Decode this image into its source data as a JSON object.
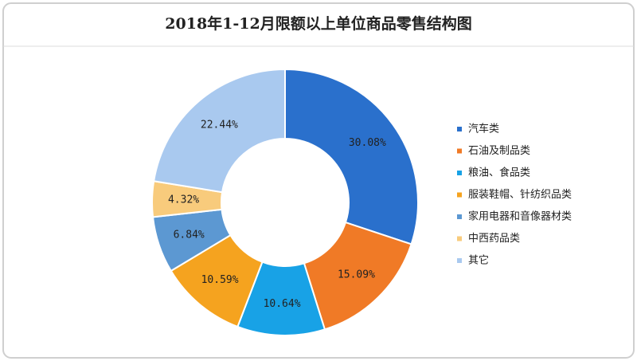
{
  "chart_data": {
    "type": "donut",
    "title": "2018年1-12月限额以上单位商品零售结构图",
    "categories": [
      "汽车类",
      "石油及制品类",
      "粮油、食品类",
      "服装鞋帽、针纺织品类",
      "家用电器和音像器材类",
      "中西药品类",
      "其它"
    ],
    "values": [
      30.08,
      15.09,
      10.64,
      10.59,
      6.84,
      4.32,
      22.44
    ],
    "value_labels": [
      "30.08%",
      "15.09%",
      "10.64%",
      "10.59%",
      "6.84%",
      "4.32%",
      "22.44%"
    ],
    "colors": [
      "#2a70cc",
      "#f07a26",
      "#18a2e6",
      "#f5a31f",
      "#5c98d2",
      "#f8cb7c",
      "#a9c9ef"
    ],
    "legend": "right"
  }
}
